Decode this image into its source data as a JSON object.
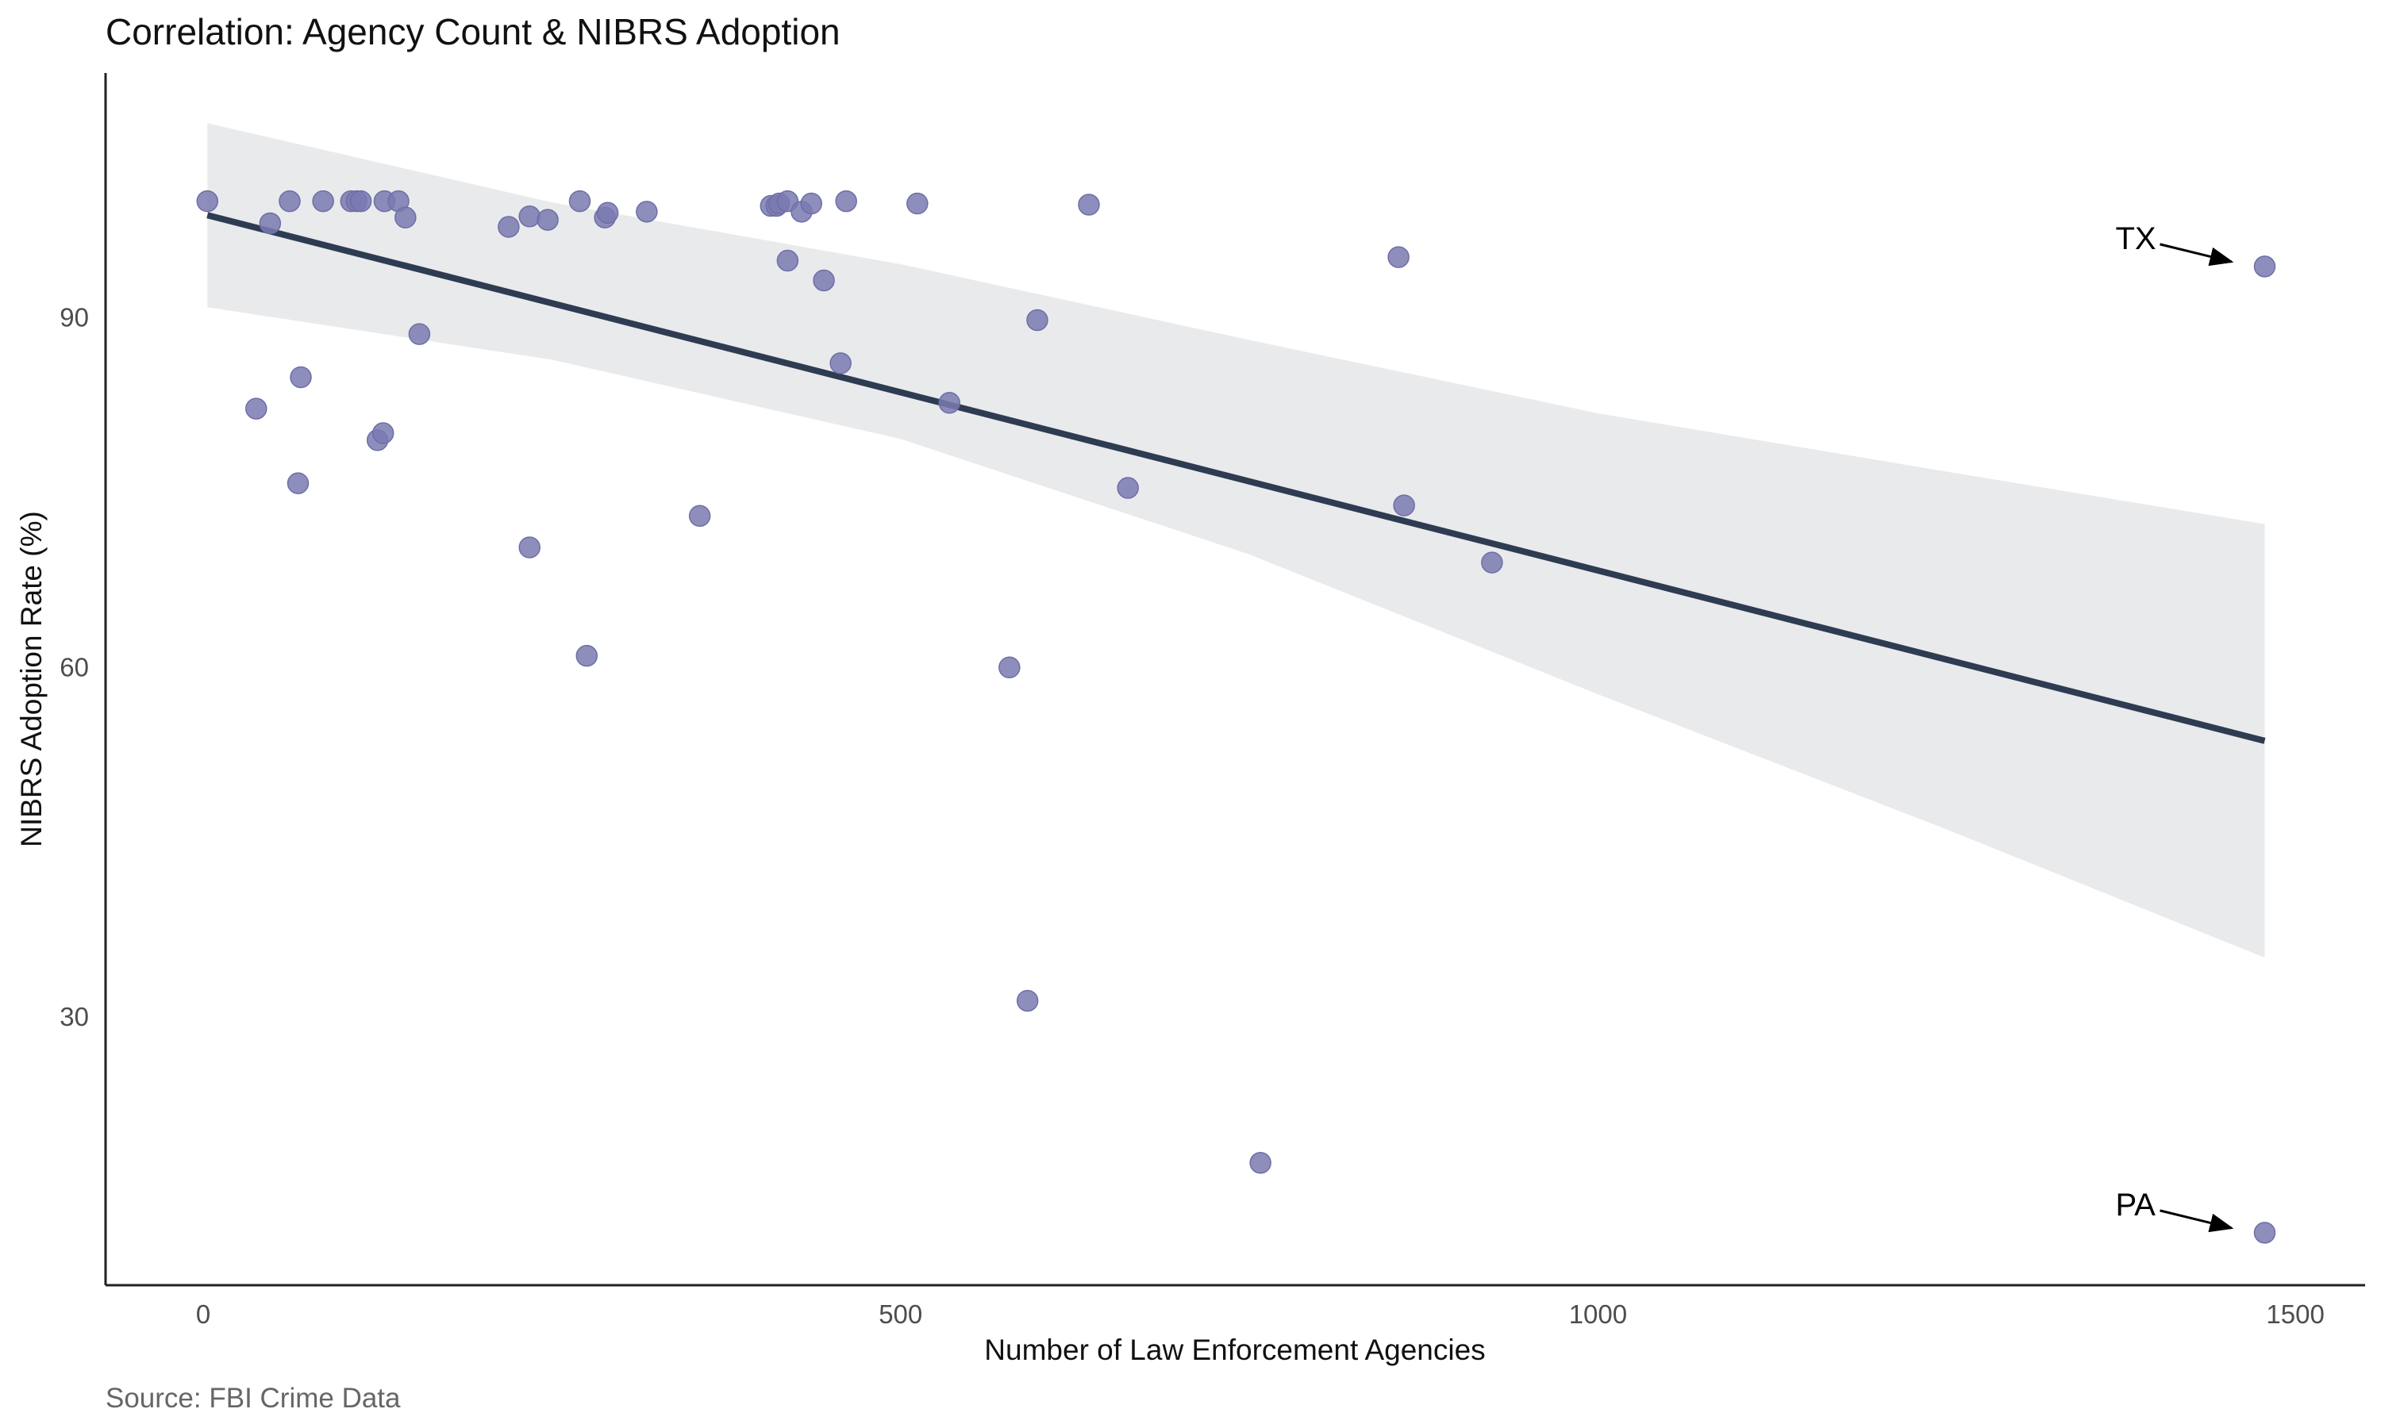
{
  "chart_data": {
    "type": "scatter",
    "title": "Correlation: Agency Count & NIBRS Adoption",
    "xlabel": "Number of Law Enforcement Agencies",
    "ylabel": "NIBRS Adoption Rate (%)",
    "caption": "Source: FBI Crime Data",
    "xlim": [
      -70,
      1550
    ],
    "ylim": [
      7,
      111
    ],
    "x_ticks": [
      0,
      500,
      1000,
      1500
    ],
    "y_ticks": [
      30,
      60,
      90
    ],
    "grid": false,
    "legend": "none",
    "colors": {
      "point": "#7a7ab2",
      "trend_line": "#2e3c52",
      "confidence_band": "#e9eaec",
      "axis": "#222222"
    },
    "points": [
      {
        "x": 3,
        "y": 100
      },
      {
        "x": 38,
        "y": 82.2
      },
      {
        "x": 48,
        "y": 98.1
      },
      {
        "x": 62,
        "y": 100
      },
      {
        "x": 68,
        "y": 75.8
      },
      {
        "x": 70,
        "y": 84.9
      },
      {
        "x": 86,
        "y": 100
      },
      {
        "x": 106,
        "y": 100
      },
      {
        "x": 110,
        "y": 100
      },
      {
        "x": 113,
        "y": 100
      },
      {
        "x": 125,
        "y": 79.5
      },
      {
        "x": 129,
        "y": 80.1
      },
      {
        "x": 130,
        "y": 100
      },
      {
        "x": 140,
        "y": 100
      },
      {
        "x": 145,
        "y": 98.6
      },
      {
        "x": 155,
        "y": 88.6
      },
      {
        "x": 219,
        "y": 97.8
      },
      {
        "x": 234,
        "y": 98.7
      },
      {
        "x": 234,
        "y": 70.3
      },
      {
        "x": 247,
        "y": 98.4
      },
      {
        "x": 270,
        "y": 100
      },
      {
        "x": 275,
        "y": 61
      },
      {
        "x": 288,
        "y": 98.6
      },
      {
        "x": 290,
        "y": 99
      },
      {
        "x": 318,
        "y": 99.1
      },
      {
        "x": 356,
        "y": 73
      },
      {
        "x": 407,
        "y": 99.6
      },
      {
        "x": 411,
        "y": 99.6
      },
      {
        "x": 413,
        "y": 99.8
      },
      {
        "x": 419,
        "y": 100
      },
      {
        "x": 419,
        "y": 94.9
      },
      {
        "x": 429,
        "y": 99.1
      },
      {
        "x": 436,
        "y": 99.8
      },
      {
        "x": 445,
        "y": 93.2
      },
      {
        "x": 457,
        "y": 86.1
      },
      {
        "x": 461,
        "y": 100
      },
      {
        "x": 512,
        "y": 99.8
      },
      {
        "x": 535,
        "y": 82.7
      },
      {
        "x": 578,
        "y": 60
      },
      {
        "x": 591,
        "y": 31.4
      },
      {
        "x": 598,
        "y": 89.8
      },
      {
        "x": 635,
        "y": 99.7
      },
      {
        "x": 663,
        "y": 75.4
      },
      {
        "x": 758,
        "y": 17.5
      },
      {
        "x": 857,
        "y": 95.2
      },
      {
        "x": 861,
        "y": 73.9
      },
      {
        "x": 924,
        "y": 69
      },
      {
        "x": 1478,
        "y": 94.4
      },
      {
        "x": 1478,
        "y": 11.5
      }
    ],
    "trend": {
      "x": [
        3,
        1478
      ],
      "y": [
        98.8,
        53.7
      ]
    },
    "confidence_band": {
      "x": [
        3,
        250,
        500,
        750,
        1000,
        1250,
        1478
      ],
      "upper": [
        106.7,
        99.9,
        94.6,
        88.1,
        81.8,
        76.8,
        72.3
      ],
      "lower": [
        90.9,
        86.4,
        79.6,
        69.7,
        57.7,
        46.1,
        35.1
      ]
    },
    "annotations": [
      {
        "label": "TX",
        "x": 1478,
        "y": 94.4
      },
      {
        "label": "PA",
        "x": 1478,
        "y": 11.5
      }
    ]
  }
}
